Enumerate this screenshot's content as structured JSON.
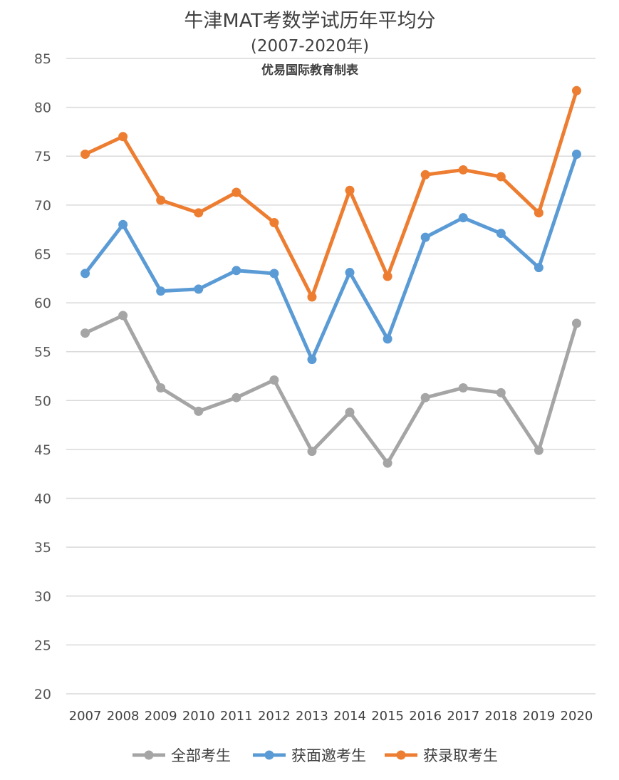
{
  "chart_data": {
    "type": "line",
    "title": "牛津MAT考数学试历年平均分",
    "subtitle": "(2007-2020年)",
    "credit": "优易国际教育制表",
    "xlabel": "",
    "ylabel": "",
    "categories": [
      "2007",
      "2008",
      "2009",
      "2010",
      "2011",
      "2012",
      "2013",
      "2014",
      "2015",
      "2016",
      "2017",
      "2018",
      "2019",
      "2020"
    ],
    "yticks": [
      "20",
      "25",
      "30",
      "35",
      "40",
      "45",
      "50",
      "55",
      "60",
      "65",
      "70",
      "75",
      "80",
      "85"
    ],
    "ylim": [
      20,
      85
    ],
    "grid": true,
    "legend_position": "bottom",
    "series": [
      {
        "name": "全部考生",
        "color": "#a5a5a5",
        "values": [
          56.9,
          58.7,
          51.3,
          48.9,
          50.3,
          52.1,
          44.8,
          48.8,
          43.6,
          50.3,
          51.3,
          50.8,
          44.9,
          57.9
        ]
      },
      {
        "name": "获面邀考生",
        "color": "#5b9bd5",
        "values": [
          63.0,
          68.0,
          61.2,
          61.4,
          63.3,
          63.0,
          54.2,
          63.1,
          56.3,
          66.7,
          68.7,
          67.1,
          63.6,
          75.2
        ]
      },
      {
        "name": "获录取考生",
        "color": "#ed7d31",
        "values": [
          75.2,
          77.0,
          70.5,
          69.2,
          71.3,
          68.2,
          60.6,
          71.5,
          62.7,
          73.1,
          73.6,
          72.9,
          69.2,
          81.7
        ]
      }
    ]
  }
}
